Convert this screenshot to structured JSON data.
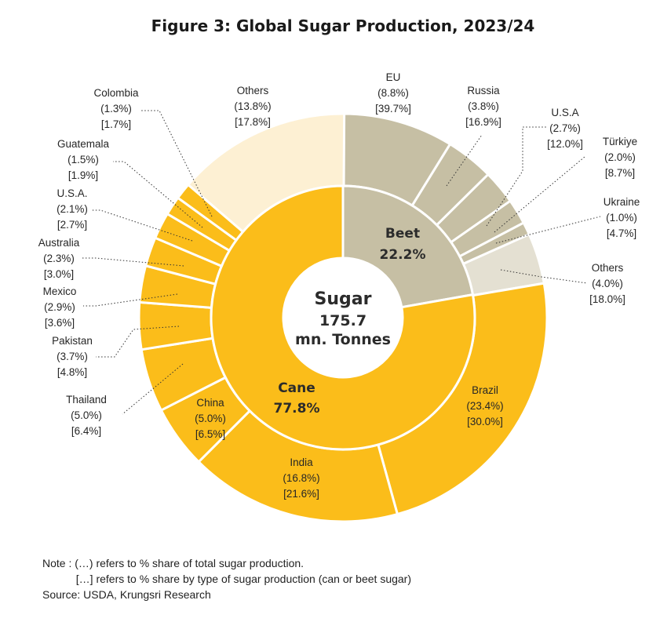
{
  "chart_data": {
    "type": "pie",
    "title": "Figure 3: Global Sugar Production, 2023/24",
    "center": {
      "line1": "Sugar",
      "line2": "175.7",
      "line3": "mn. Tonnes"
    },
    "inner_ring": [
      {
        "name": "Beet",
        "value": 22.2,
        "label": "22.2%",
        "color": "#c6bfa4"
      },
      {
        "name": "Cane",
        "value": 77.8,
        "label": "77.8%",
        "color": "#fbbd1a"
      }
    ],
    "outer_ring": [
      {
        "name": "EU",
        "group": "Beet",
        "total_share": 8.8,
        "type_share": 39.7,
        "total_label": "(8.8%)",
        "type_label": "[39.7%]",
        "color": "#c6bfa4"
      },
      {
        "name": "Russia",
        "group": "Beet",
        "total_share": 3.8,
        "type_share": 16.9,
        "total_label": "(3.8%)",
        "type_label": "[16.9%]",
        "color": "#c6bfa4"
      },
      {
        "name": "U.S.A",
        "group": "Beet",
        "total_share": 2.7,
        "type_share": 12.0,
        "total_label": "(2.7%)",
        "type_label": "[12.0%]",
        "color": "#c6bfa4"
      },
      {
        "name": "Türkiye",
        "group": "Beet",
        "total_share": 2.0,
        "type_share": 8.7,
        "total_label": "(2.0%)",
        "type_label": "[8.7%]",
        "color": "#c6bfa4"
      },
      {
        "name": "Ukraine",
        "group": "Beet",
        "total_share": 1.0,
        "type_share": 4.7,
        "total_label": "(1.0%)",
        "type_label": "[4.7%]",
        "color": "#c6bfa4"
      },
      {
        "name": "Others",
        "group": "Beet",
        "total_share": 4.0,
        "type_share": 18.0,
        "total_label": "(4.0%)",
        "type_label": "[18.0%]",
        "color": "#e4e0d2"
      },
      {
        "name": "Brazil",
        "group": "Cane",
        "total_share": 23.4,
        "type_share": 30.0,
        "total_label": "(23.4%)",
        "type_label": "[30.0%]",
        "color": "#fbbd1a"
      },
      {
        "name": "India",
        "group": "Cane",
        "total_share": 16.8,
        "type_share": 21.6,
        "total_label": "(16.8%)",
        "type_label": "[21.6%]",
        "color": "#fbbd1a"
      },
      {
        "name": "China",
        "group": "Cane",
        "total_share": 5.0,
        "type_share": 6.5,
        "total_label": "(5.0%)",
        "type_label": "[6.5%]",
        "color": "#fbbd1a"
      },
      {
        "name": "Thailand",
        "group": "Cane",
        "total_share": 5.0,
        "type_share": 6.4,
        "total_label": "(5.0%)",
        "type_label": "[6.4%]",
        "color": "#fbbd1a"
      },
      {
        "name": "Pakistan",
        "group": "Cane",
        "total_share": 3.7,
        "type_share": 4.8,
        "total_label": "(3.7%)",
        "type_label": "[4.8%]",
        "color": "#fbbd1a"
      },
      {
        "name": "Mexico",
        "group": "Cane",
        "total_share": 2.9,
        "type_share": 3.6,
        "total_label": "(2.9%)",
        "type_label": "[3.6%]",
        "color": "#fbbd1a"
      },
      {
        "name": "Australia",
        "group": "Cane",
        "total_share": 2.3,
        "type_share": 3.0,
        "total_label": "(2.3%)",
        "type_label": "[3.0%]",
        "color": "#fbbd1a"
      },
      {
        "name": "U.S.A.",
        "group": "Cane",
        "total_share": 2.1,
        "type_share": 2.7,
        "total_label": "(2.1%)",
        "type_label": "[2.7%]",
        "color": "#fbbd1a"
      },
      {
        "name": "Guatemala",
        "group": "Cane",
        "total_share": 1.5,
        "type_share": 1.9,
        "total_label": "(1.5%)",
        "type_label": "[1.9%]",
        "color": "#fbbd1a"
      },
      {
        "name": "Colombia",
        "group": "Cane",
        "total_share": 1.3,
        "type_share": 1.7,
        "total_label": "(1.3%)",
        "type_label": "[1.7%]",
        "color": "#fbbd1a"
      },
      {
        "name": "Others",
        "group": "Cane",
        "total_share": 13.8,
        "type_share": 17.8,
        "total_label": "(13.8%)",
        "type_label": "[17.8%]",
        "color": "#fdf0d3"
      }
    ]
  },
  "notes": {
    "line1": "Note : (…) refers to % share of total sugar production.",
    "line2": "           […] refers to % share by type of sugar production (can or beet sugar)",
    "source": "Source: USDA, Krungsri Research"
  }
}
